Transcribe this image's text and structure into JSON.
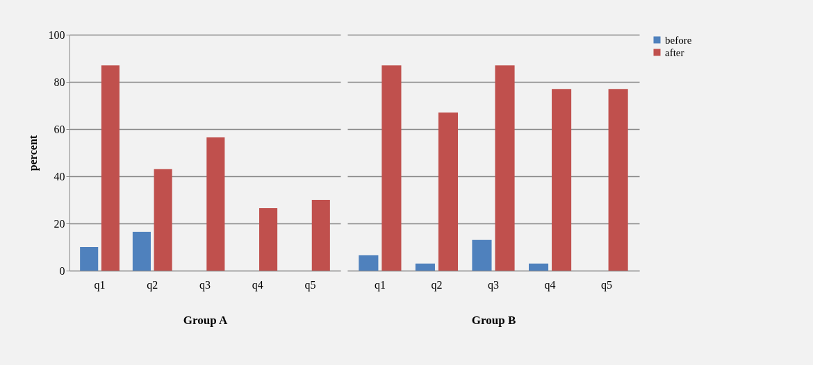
{
  "chart_data": [
    {
      "type": "bar",
      "xlabel": "Group A",
      "ylabel": "percent",
      "categories": [
        "q1",
        "q2",
        "q3",
        "q4",
        "q5"
      ],
      "ylim": [
        0,
        100
      ],
      "yticks": [
        0,
        20,
        40,
        60,
        80,
        100
      ],
      "grid": "y",
      "legend": false,
      "series": [
        {
          "color": "#4f81bd",
          "values": [
            10,
            16.5,
            0,
            0,
            0
          ]
        },
        {
          "color": "#c0504d",
          "values": [
            87,
            43,
            56.5,
            26.5,
            30
          ]
        }
      ]
    },
    {
      "type": "bar",
      "xlabel": "Group B",
      "categories": [
        "q1",
        "q2",
        "q3",
        "q4",
        "q5"
      ],
      "ylim": [
        0,
        100
      ],
      "yticks": [
        0,
        20,
        40,
        60,
        80,
        100
      ],
      "grid": "y",
      "legend": "right",
      "tick_labels": "x",
      "series": [
        {
          "name": "before",
          "color": "#4f81bd",
          "values": [
            6.5,
            3,
            13,
            3,
            0
          ]
        },
        {
          "name": "after",
          "color": "#c0504d",
          "values": [
            87,
            67,
            87,
            77,
            77
          ]
        }
      ]
    }
  ]
}
